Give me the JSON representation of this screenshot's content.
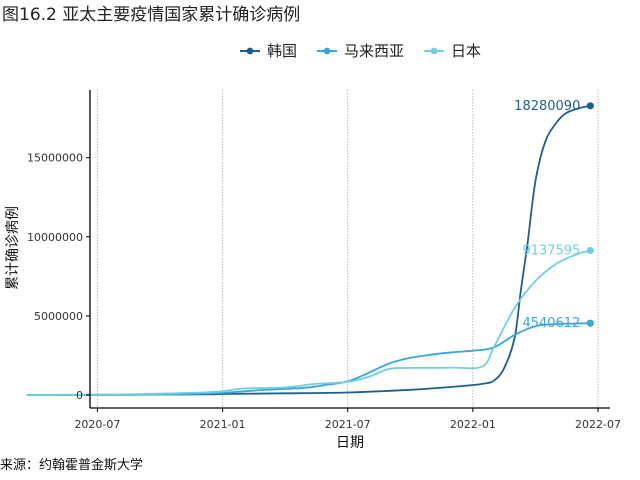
{
  "page": {
    "title": "图16.2 亚太主要疫情国家累计确诊病例",
    "source": "来源：约翰霍普金斯大学"
  },
  "colors": {
    "korea": "#1f5f8b",
    "malaysia": "#3aa6d6",
    "japan": "#72cfe0",
    "grid": "#aaaaaa",
    "axis": "#000000"
  },
  "chart_data": {
    "type": "line",
    "title": "图16.2 亚太主要疫情国家累计确诊病例",
    "xlabel": "日期",
    "ylabel": "累计确诊病例",
    "x_tick_labels": [
      "2020-07",
      "2021-01",
      "2021-07",
      "2022-01",
      "2022-07"
    ],
    "y_tick_labels": [
      "0",
      "5000000",
      "10000000",
      "15000000"
    ],
    "y_ticks": [
      0,
      5000000,
      10000000,
      15000000
    ],
    "xlim": [
      "2020-03",
      "2022-07"
    ],
    "ylim": [
      0,
      18900000
    ],
    "grid": "vertical-major-dotted",
    "legend_position": "top",
    "series": [
      {
        "name": "韩国",
        "color_key": "korea",
        "end_label": "18280090",
        "points": [
          [
            "2020-03-20",
            9000
          ],
          [
            "2020-07-01",
            13000
          ],
          [
            "2020-12-01",
            38000
          ],
          [
            "2021-01-01",
            64000
          ],
          [
            "2021-04-01",
            105000
          ],
          [
            "2021-07-01",
            160000
          ],
          [
            "2021-10-01",
            330000
          ],
          [
            "2021-12-15",
            560000
          ],
          [
            "2022-01-15",
            700000
          ],
          [
            "2022-02-01",
            900000
          ],
          [
            "2022-02-15",
            1700000
          ],
          [
            "2022-03-01",
            3600000
          ],
          [
            "2022-03-10",
            6500000
          ],
          [
            "2022-03-20",
            9500000
          ],
          [
            "2022-04-01",
            13500000
          ],
          [
            "2022-04-15",
            16000000
          ],
          [
            "2022-05-01",
            17200000
          ],
          [
            "2022-05-15",
            17800000
          ],
          [
            "2022-06-01",
            18100000
          ],
          [
            "2022-06-20",
            18280090
          ]
        ]
      },
      {
        "name": "马来西亚",
        "color_key": "malaysia",
        "end_label": "4540612",
        "points": [
          [
            "2020-03-20",
            1000
          ],
          [
            "2020-07-01",
            9000
          ],
          [
            "2020-10-01",
            25000
          ],
          [
            "2020-12-01",
            90000
          ],
          [
            "2021-01-01",
            130000
          ],
          [
            "2021-03-01",
            320000
          ],
          [
            "2021-05-01",
            460000
          ],
          [
            "2021-06-01",
            650000
          ],
          [
            "2021-07-01",
            860000
          ],
          [
            "2021-08-01",
            1400000
          ],
          [
            "2021-09-01",
            2000000
          ],
          [
            "2021-10-01",
            2350000
          ],
          [
            "2021-11-01",
            2550000
          ],
          [
            "2021-12-01",
            2700000
          ],
          [
            "2022-01-01",
            2800000
          ],
          [
            "2022-02-01",
            3000000
          ],
          [
            "2022-03-01",
            3800000
          ],
          [
            "2022-04-01",
            4350000
          ],
          [
            "2022-05-01",
            4480000
          ],
          [
            "2022-06-20",
            4540612
          ]
        ]
      },
      {
        "name": "日本",
        "color_key": "japan",
        "end_label": "9137595",
        "points": [
          [
            "2020-03-20",
            1000
          ],
          [
            "2020-07-01",
            19000
          ],
          [
            "2020-10-01",
            85000
          ],
          [
            "2020-12-01",
            160000
          ],
          [
            "2021-01-01",
            235000
          ],
          [
            "2021-02-01",
            410000
          ],
          [
            "2021-04-01",
            480000
          ],
          [
            "2021-05-15",
            700000
          ],
          [
            "2021-07-01",
            830000
          ],
          [
            "2021-08-01",
            1150000
          ],
          [
            "2021-09-01",
            1650000
          ],
          [
            "2021-10-01",
            1710000
          ],
          [
            "2021-12-01",
            1730000
          ],
          [
            "2022-01-15",
            1800000
          ],
          [
            "2022-02-01",
            3000000
          ],
          [
            "2022-03-01",
            5500000
          ],
          [
            "2022-04-01",
            7200000
          ],
          [
            "2022-05-01",
            8300000
          ],
          [
            "2022-06-01",
            8900000
          ],
          [
            "2022-06-20",
            9137595
          ]
        ]
      }
    ]
  }
}
